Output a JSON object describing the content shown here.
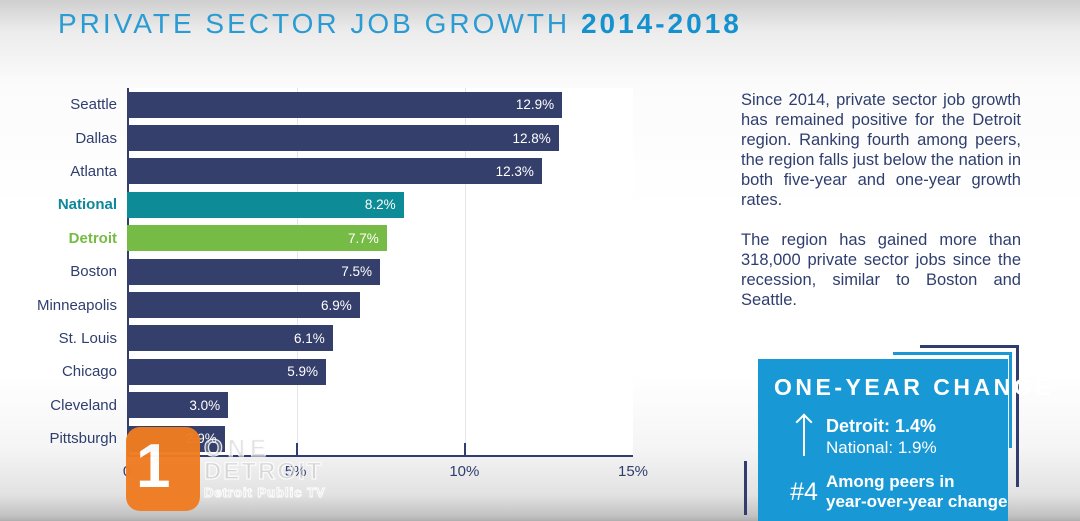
{
  "title": {
    "main": "PRIVATE SECTOR JOB GROWTH",
    "years": "2014-2018"
  },
  "chart_data": {
    "type": "bar",
    "orientation": "horizontal",
    "title": "PRIVATE SECTOR JOB GROWTH 2014-2018",
    "categories": [
      "Seattle",
      "Dallas",
      "Atlanta",
      "National",
      "Detroit",
      "Boston",
      "Minneapolis",
      "St. Louis",
      "Chicago",
      "Cleveland",
      "Pittsburgh"
    ],
    "values": [
      12.9,
      12.8,
      12.3,
      8.2,
      7.7,
      7.5,
      6.9,
      6.1,
      5.9,
      3.0,
      2.9
    ],
    "data_labels": [
      "12.9%",
      "12.8%",
      "12.3%",
      "8.2%",
      "7.7%",
      "7.5%",
      "6.9%",
      "6.1%",
      "5.9%",
      "3.0%",
      "2.9%"
    ],
    "xlim": [
      0,
      15
    ],
    "x_ticks": [
      {
        "value": 0,
        "label": "0"
      },
      {
        "value": 5,
        "label": "5%"
      },
      {
        "value": 10,
        "label": "10%"
      },
      {
        "value": 15,
        "label": "15%"
      }
    ],
    "gridlines": [
      5,
      10
    ],
    "axis_ticks": [
      5,
      10
    ],
    "grid": true,
    "legend": false,
    "bar_color_default": "#343f6b",
    "highlights": {
      "National": "#0d8b96",
      "Detroit": "#76bb45"
    },
    "label_highlights": {
      "National": "#0e879a",
      "Detroit": "#76bb45"
    }
  },
  "summary": {
    "para1": "Since 2014, private sector job growth has remained positive for the Detroit region. Ranking fourth among peers, the region falls just below the nation in both five-year and one-year growth rates.",
    "para2": "The region has gained more than 318,000 private sector jobs since the recession, similar to Boston and Seattle."
  },
  "change_box": {
    "title": "ONE-YEAR CHANGE",
    "detroit_line": "Detroit: 1.4%",
    "national_line": "National: 1.9%",
    "rank": "#4",
    "rank_line1": "Among peers in",
    "rank_line2": "year-over-year change",
    "up_arrow_icon": "up-arrow",
    "background": "#1898d5"
  },
  "watermark": {
    "digit": "1",
    "line1": "ONE",
    "line2": "DETROIT",
    "line3": "Detroit Public TV",
    "logo_color": "#ef7c22"
  },
  "colors": {
    "title_blue": "#2b9cd3",
    "navy": "#2f3e6e",
    "bar_navy": "#343f6b",
    "teal": "#0d8b96",
    "green": "#76bb45",
    "box_blue": "#1898d5",
    "gridline": "#e4e4e9"
  }
}
